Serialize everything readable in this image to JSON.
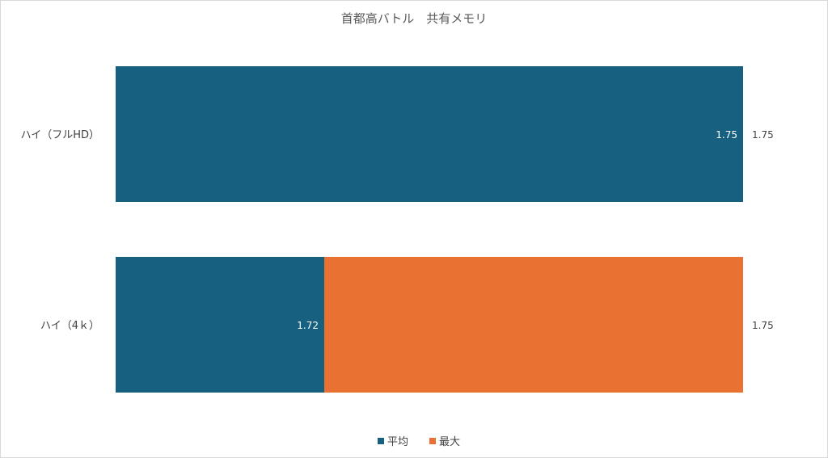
{
  "chart_data": {
    "type": "bar",
    "orientation": "horizontal",
    "title": "首都高バトル　共有メモリ",
    "categories": [
      "ハイ（フルHD）",
      "ハイ（4ｋ）"
    ],
    "series": [
      {
        "name": "平均",
        "values": [
          1.75,
          1.72
        ],
        "color": "#17607f"
      },
      {
        "name": "最大",
        "values": [
          1.75,
          1.75
        ],
        "color": "#e97132"
      }
    ],
    "data_labels": {
      "平均": [
        "1.75",
        "1.72"
      ],
      "最大": [
        "1.75",
        "1.75"
      ]
    },
    "xlim": [
      0,
      1.75
    ],
    "axis_visible": false,
    "grid": false,
    "legend_position": "bottom"
  }
}
